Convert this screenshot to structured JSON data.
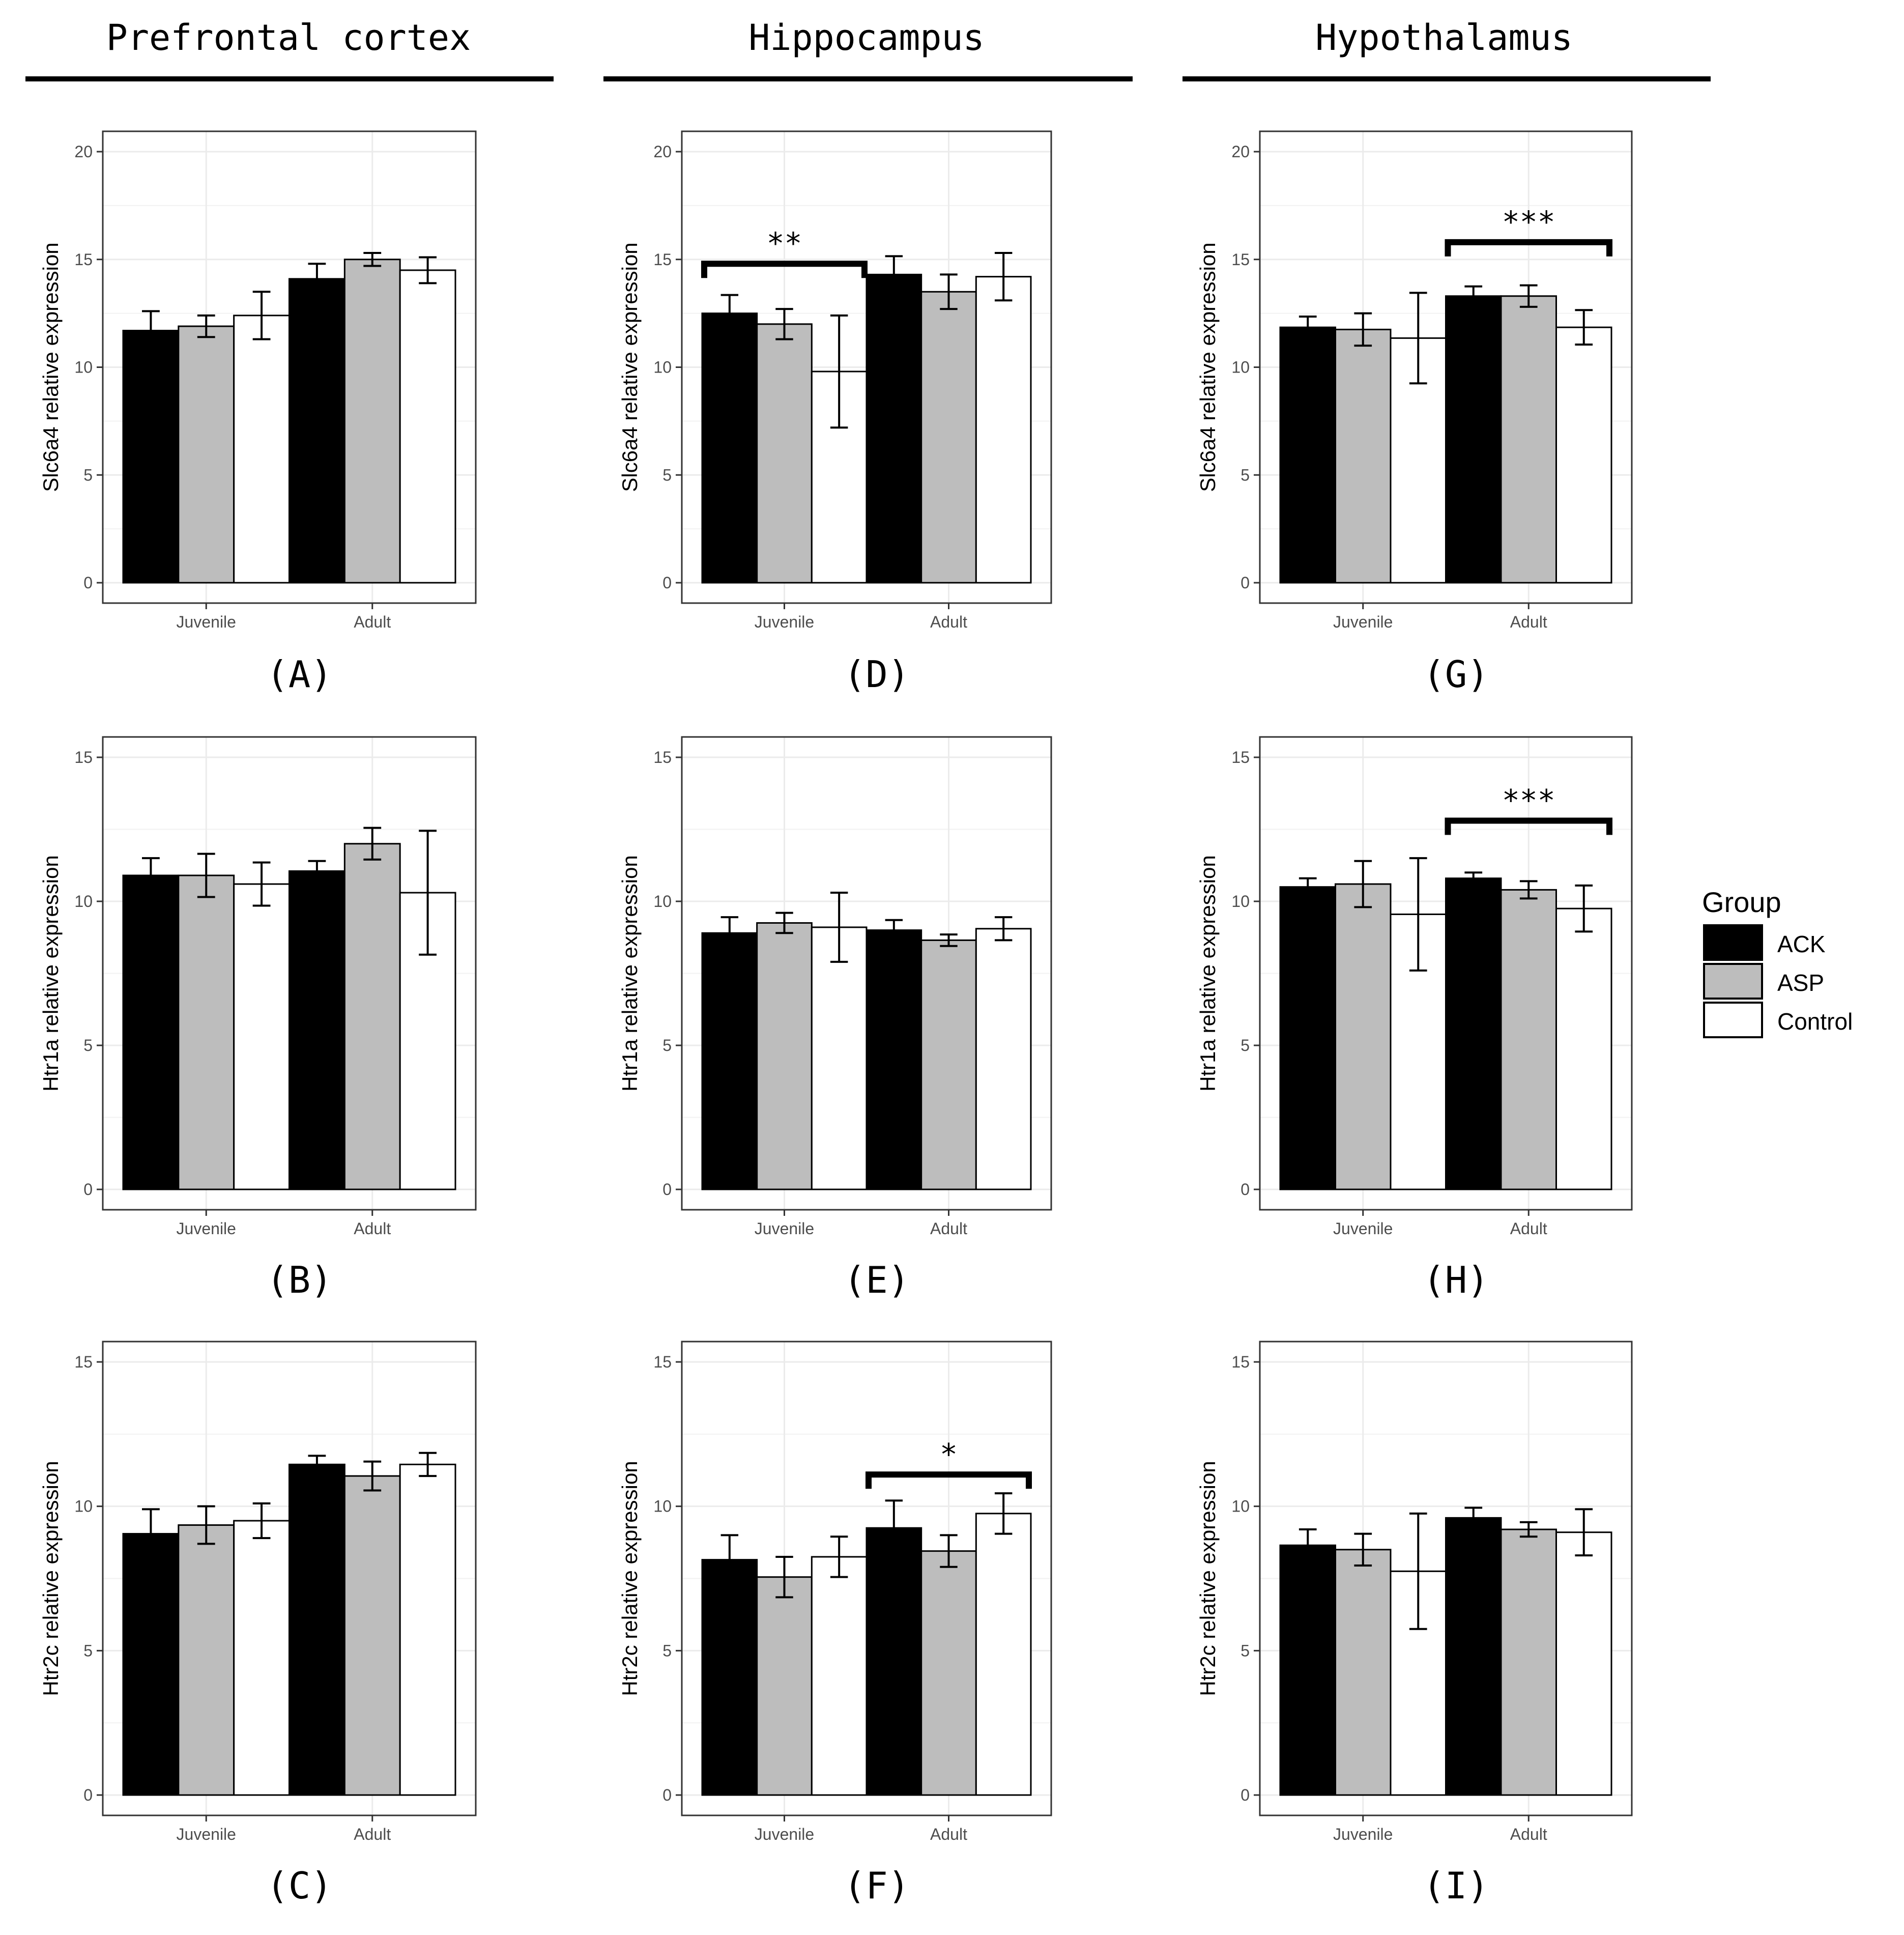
{
  "column_titles": [
    "Prefrontal cortex",
    "Hippocampus",
    "Hypothalamus"
  ],
  "legend": {
    "title": "Group",
    "items": [
      {
        "label": "ACK",
        "color": "#000000"
      },
      {
        "label": "ASP",
        "color": "#bdbdbd"
      },
      {
        "label": "Control",
        "color": "#ffffff"
      }
    ]
  },
  "chart_data": [
    {
      "panel": "(A)",
      "type": "bar",
      "ylabel": "Slc6a4 relative expression",
      "ylim": [
        0,
        20
      ],
      "yticks": [
        0,
        5,
        10,
        15,
        20
      ],
      "categories": [
        "Juvenile",
        "Adult"
      ],
      "series": [
        {
          "name": "ACK",
          "values": [
            11.7,
            14.1
          ],
          "errors": [
            0.9,
            0.7
          ]
        },
        {
          "name": "ASP",
          "values": [
            11.9,
            15.0
          ],
          "errors": [
            0.5,
            0.3
          ]
        },
        {
          "name": "Control",
          "values": [
            12.4,
            14.5
          ],
          "errors": [
            1.1,
            0.6
          ]
        }
      ],
      "significance": []
    },
    {
      "panel": "(B)",
      "type": "bar",
      "ylabel": "Htr1a relative expression",
      "ylim": [
        0,
        15
      ],
      "yticks": [
        0,
        5,
        10,
        15
      ],
      "categories": [
        "Juvenile",
        "Adult"
      ],
      "series": [
        {
          "name": "ACK",
          "values": [
            10.9,
            11.05
          ],
          "errors": [
            0.6,
            0.35
          ]
        },
        {
          "name": "ASP",
          "values": [
            10.9,
            12.0
          ],
          "errors": [
            0.75,
            0.55
          ]
        },
        {
          "name": "Control",
          "values": [
            10.6,
            10.3
          ],
          "errors": [
            0.75,
            2.15
          ]
        }
      ],
      "significance": []
    },
    {
      "panel": "(C)",
      "type": "bar",
      "ylabel": "Htr2c relative expression",
      "ylim": [
        0,
        15
      ],
      "yticks": [
        0,
        5,
        10,
        15
      ],
      "categories": [
        "Juvenile",
        "Adult"
      ],
      "series": [
        {
          "name": "ACK",
          "values": [
            9.05,
            11.45
          ],
          "errors": [
            0.85,
            0.3
          ]
        },
        {
          "name": "ASP",
          "values": [
            9.35,
            11.05
          ],
          "errors": [
            0.65,
            0.5
          ]
        },
        {
          "name": "Control",
          "values": [
            9.5,
            11.45
          ],
          "errors": [
            0.6,
            0.4
          ]
        }
      ],
      "significance": []
    },
    {
      "panel": "(D)",
      "type": "bar",
      "ylabel": "Slc6a4 relative expression",
      "ylim": [
        0,
        20
      ],
      "yticks": [
        0,
        5,
        10,
        15,
        20
      ],
      "categories": [
        "Juvenile",
        "Adult"
      ],
      "series": [
        {
          "name": "ACK",
          "values": [
            12.5,
            14.3
          ],
          "errors": [
            0.85,
            0.85
          ]
        },
        {
          "name": "ASP",
          "values": [
            12.0,
            13.5
          ],
          "errors": [
            0.7,
            0.8
          ]
        },
        {
          "name": "Control",
          "values": [
            9.8,
            14.2
          ],
          "errors": [
            2.6,
            1.1
          ]
        }
      ],
      "significance": [
        {
          "label": "**",
          "from": "Juvenile-ACK",
          "to": "Juvenile-Control",
          "y": 14.8
        }
      ]
    },
    {
      "panel": "(E)",
      "type": "bar",
      "ylabel": "Htr1a relative expression",
      "ylim": [
        0,
        15
      ],
      "yticks": [
        0,
        5,
        10,
        15
      ],
      "categories": [
        "Juvenile",
        "Adult"
      ],
      "series": [
        {
          "name": "ACK",
          "values": [
            8.9,
            9.0
          ],
          "errors": [
            0.55,
            0.35
          ]
        },
        {
          "name": "ASP",
          "values": [
            9.25,
            8.65
          ],
          "errors": [
            0.35,
            0.2
          ]
        },
        {
          "name": "Control",
          "values": [
            9.1,
            9.05
          ],
          "errors": [
            1.2,
            0.4
          ]
        }
      ],
      "significance": []
    },
    {
      "panel": "(F)",
      "type": "bar",
      "ylabel": "Htr2c relative expression",
      "ylim": [
        0,
        15
      ],
      "yticks": [
        0,
        5,
        10,
        15
      ],
      "categories": [
        "Juvenile",
        "Adult"
      ],
      "series": [
        {
          "name": "ACK",
          "values": [
            8.15,
            9.25
          ],
          "errors": [
            0.85,
            0.95
          ]
        },
        {
          "name": "ASP",
          "values": [
            7.55,
            8.45
          ],
          "errors": [
            0.7,
            0.55
          ]
        },
        {
          "name": "Control",
          "values": [
            8.25,
            9.75
          ],
          "errors": [
            0.7,
            0.7
          ]
        }
      ],
      "significance": [
        {
          "label": "*",
          "from": "Adult-ACK",
          "to": "Adult-Control",
          "y": 11.1
        }
      ]
    },
    {
      "panel": "(G)",
      "type": "bar",
      "ylabel": "Slc6a4 relative expression",
      "ylim": [
        0,
        20
      ],
      "yticks": [
        0,
        5,
        10,
        15,
        20
      ],
      "categories": [
        "Juvenile",
        "Adult"
      ],
      "series": [
        {
          "name": "ACK",
          "values": [
            11.85,
            13.3
          ],
          "errors": [
            0.5,
            0.45
          ]
        },
        {
          "name": "ASP",
          "values": [
            11.75,
            13.3
          ],
          "errors": [
            0.75,
            0.5
          ]
        },
        {
          "name": "Control",
          "values": [
            11.35,
            11.85
          ],
          "errors": [
            2.1,
            0.8
          ]
        }
      ],
      "significance": [
        {
          "label": "***",
          "from": "Adult-ACK",
          "to": "Adult-Control",
          "y": 15.8
        }
      ]
    },
    {
      "panel": "(H)",
      "type": "bar",
      "ylabel": "Htr1a relative expression",
      "ylim": [
        0,
        15
      ],
      "yticks": [
        0,
        5,
        10,
        15
      ],
      "categories": [
        "Juvenile",
        "Adult"
      ],
      "series": [
        {
          "name": "ACK",
          "values": [
            10.5,
            10.8
          ],
          "errors": [
            0.3,
            0.2
          ]
        },
        {
          "name": "ASP",
          "values": [
            10.6,
            10.4
          ],
          "errors": [
            0.8,
            0.3
          ]
        },
        {
          "name": "Control",
          "values": [
            9.55,
            9.75
          ],
          "errors": [
            1.95,
            0.8
          ]
        }
      ],
      "significance": [
        {
          "label": "***",
          "from": "Adult-ACK",
          "to": "Adult-Control",
          "y": 12.8
        }
      ]
    },
    {
      "panel": "(I)",
      "type": "bar",
      "ylabel": "Htr2c relative expression",
      "ylim": [
        0,
        15
      ],
      "yticks": [
        0,
        5,
        10,
        15
      ],
      "categories": [
        "Juvenile",
        "Adult"
      ],
      "series": [
        {
          "name": "ACK",
          "values": [
            8.65,
            9.6
          ],
          "errors": [
            0.55,
            0.35
          ]
        },
        {
          "name": "ASP",
          "values": [
            8.5,
            9.2
          ],
          "errors": [
            0.55,
            0.25
          ]
        },
        {
          "name": "Control",
          "values": [
            7.75,
            9.1
          ],
          "errors": [
            2.0,
            0.8
          ]
        }
      ],
      "significance": []
    }
  ]
}
